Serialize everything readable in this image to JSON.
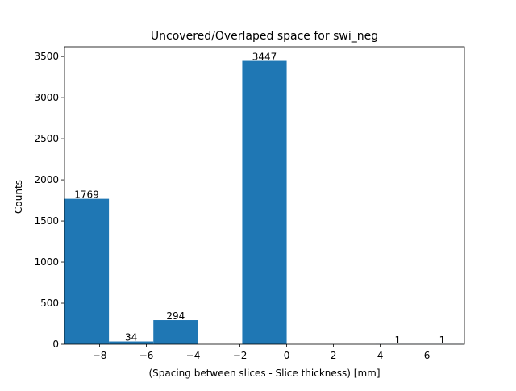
{
  "chart_data": {
    "type": "bar",
    "title": "Uncovered/Overlaped space for swi_neg",
    "xlabel": "(Spacing between slices - Slice thickness) [mm]",
    "ylabel": "Counts",
    "bins": [
      {
        "x0": -9.5,
        "x1": -7.6,
        "value": 1769,
        "label": "1769"
      },
      {
        "x0": -7.6,
        "x1": -5.7,
        "value": 34,
        "label": "34"
      },
      {
        "x0": -5.7,
        "x1": -3.8,
        "value": 294,
        "label": "294"
      },
      {
        "x0": -3.8,
        "x1": -1.9,
        "value": 0,
        "label": ""
      },
      {
        "x0": -1.9,
        "x1": 0.0,
        "value": 3447,
        "label": "3447"
      },
      {
        "x0": 0.0,
        "x1": 1.9,
        "value": 0,
        "label": ""
      },
      {
        "x0": 1.9,
        "x1": 3.8,
        "value": 0,
        "label": ""
      },
      {
        "x0": 3.8,
        "x1": 5.7,
        "value": 1,
        "label": "1"
      },
      {
        "x0": 5.7,
        "x1": 7.6,
        "value": 1,
        "label": "1"
      }
    ],
    "xlim": [
      -9.5,
      7.6
    ],
    "ylim": [
      0,
      3619
    ],
    "xticks": [
      -8,
      -6,
      -4,
      -2,
      0,
      2,
      4,
      6
    ],
    "yticks": [
      0,
      500,
      1000,
      1500,
      2000,
      2500,
      3000,
      3500
    ],
    "grid": false,
    "bar_color": "#1f77b4"
  }
}
